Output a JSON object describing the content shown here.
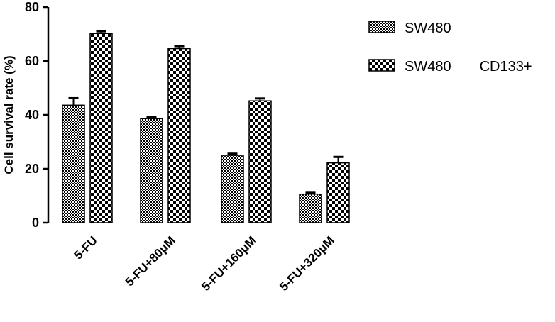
{
  "chart_data": {
    "type": "bar",
    "title": "",
    "xlabel": "",
    "ylabel": "Cell survival rate (%)",
    "ylim": [
      0,
      80
    ],
    "yticks": [
      0,
      20,
      40,
      60,
      80
    ],
    "grid": false,
    "legend_position": "top-right",
    "categories": [
      "5-FU",
      "5-FU+80μM",
      "5-FU+160μM",
      "5-FU+320μM"
    ],
    "series": [
      {
        "name": "SW480",
        "values": [
          43.6,
          38.6,
          25.0,
          10.6
        ],
        "errors": [
          2.6,
          0.6,
          0.6,
          0.5
        ],
        "pattern": "fine-checker"
      },
      {
        "name": "SW480  CD133+",
        "values": [
          70.2,
          64.6,
          45.2,
          22.2
        ],
        "errors": [
          0.8,
          0.9,
          0.9,
          2.2
        ],
        "pattern": "coarse-checker"
      }
    ]
  }
}
